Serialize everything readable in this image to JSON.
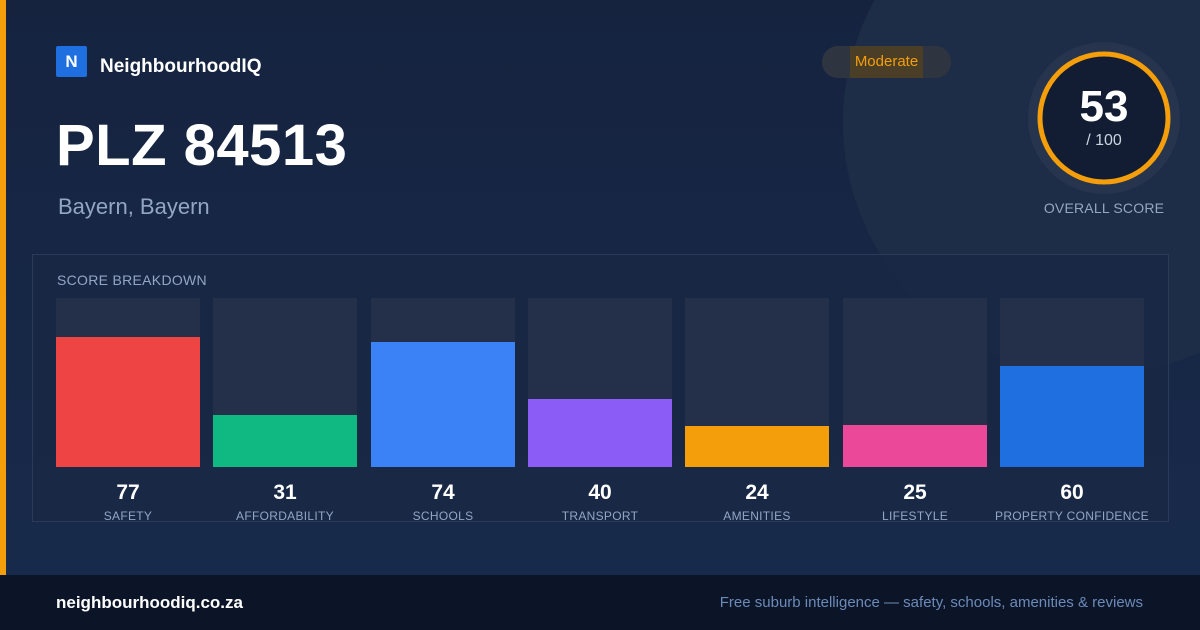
{
  "brand": {
    "logo_letter": "N",
    "name": "NeighbourhoodIQ",
    "color": "#1f6fe0"
  },
  "location": {
    "title": "PLZ 84513",
    "subtitle": "Bayern, Bayern"
  },
  "badge": {
    "label": "Moderate",
    "color": "#f59e0b"
  },
  "overall": {
    "value": 53,
    "max_text": "/ 100",
    "label": "OVERALL SCORE",
    "ring_color": "#f59e0b"
  },
  "breakdown": {
    "title": "SCORE BREAKDOWN",
    "max": 100,
    "items": [
      {
        "label": "SAFETY",
        "value": 77,
        "color": "#ef4444"
      },
      {
        "label": "AFFORDABILITY",
        "value": 31,
        "color": "#10b981"
      },
      {
        "label": "SCHOOLS",
        "value": 74,
        "color": "#3b82f6"
      },
      {
        "label": "TRANSPORT",
        "value": 40,
        "color": "#8b5cf6"
      },
      {
        "label": "AMENITIES",
        "value": 24,
        "color": "#f59e0b"
      },
      {
        "label": "LIFESTYLE",
        "value": 25,
        "color": "#ec4899"
      },
      {
        "label": "PROPERTY CONFIDENCE",
        "value": 60,
        "color": "#1f6fe0"
      }
    ]
  },
  "footer": {
    "url": "neighbourhoodiq.co.za",
    "tagline": "Free suburb intelligence — safety, schools, amenities & reviews"
  },
  "chart_data": {
    "type": "bar",
    "title": "SCORE BREAKDOWN",
    "categories": [
      "SAFETY",
      "AFFORDABILITY",
      "SCHOOLS",
      "TRANSPORT",
      "AMENITIES",
      "LIFESTYLE",
      "PROPERTY CONFIDENCE"
    ],
    "values": [
      77,
      31,
      74,
      40,
      24,
      25,
      60
    ],
    "ylim": [
      0,
      100
    ],
    "grid": false
  }
}
